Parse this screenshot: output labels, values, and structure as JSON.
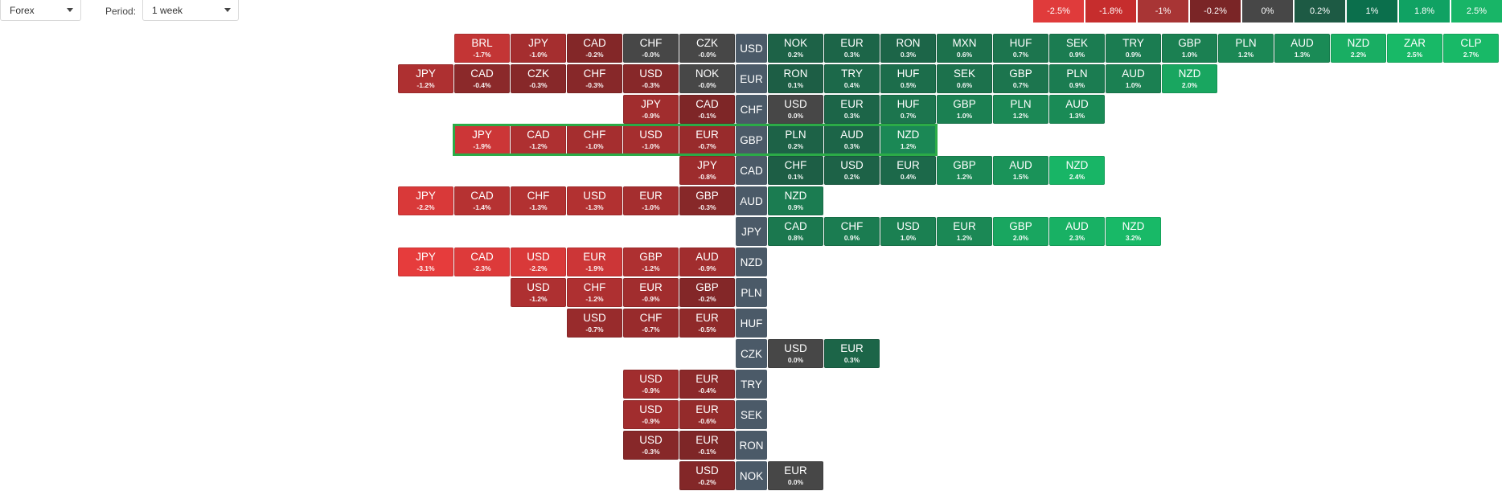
{
  "toolbar": {
    "market_select": "Forex",
    "period_label": "Period:",
    "period_select": "1 week"
  },
  "legend": [
    {
      "label": "-2.5%",
      "color": "#e03b3b"
    },
    {
      "label": "-1.8%",
      "color": "#c62d2d"
    },
    {
      "label": "-1%",
      "color": "#a83535"
    },
    {
      "label": "-0.2%",
      "color": "#7a2526"
    },
    {
      "label": "0%",
      "color": "#474747"
    },
    {
      "label": "0.2%",
      "color": "#1d5a44"
    },
    {
      "label": "1%",
      "color": "#0b6f4c"
    },
    {
      "label": "1.8%",
      "color": "#10a263"
    },
    {
      "label": "2.5%",
      "color": "#18b567"
    }
  ],
  "rows": [
    {
      "base": "USD",
      "neg": [
        [
          "BRL",
          "-1.7%"
        ],
        [
          "JPY",
          "-1.0%"
        ],
        [
          "CAD",
          "-0.2%"
        ],
        [
          "CHF",
          "-0.0%"
        ],
        [
          "CZK",
          "-0.0%"
        ]
      ],
      "pos": [
        [
          "NOK",
          "0.2%"
        ],
        [
          "EUR",
          "0.3%"
        ],
        [
          "RON",
          "0.3%"
        ],
        [
          "MXN",
          "0.6%"
        ],
        [
          "HUF",
          "0.7%"
        ],
        [
          "SEK",
          "0.9%"
        ],
        [
          "TRY",
          "0.9%"
        ],
        [
          "GBP",
          "1.0%"
        ],
        [
          "PLN",
          "1.2%"
        ],
        [
          "AUD",
          "1.3%"
        ],
        [
          "NZD",
          "2.2%"
        ],
        [
          "ZAR",
          "2.5%"
        ],
        [
          "CLP",
          "2.7%"
        ]
      ]
    },
    {
      "base": "EUR",
      "neg": [
        [
          "JPY",
          "-1.2%"
        ],
        [
          "CAD",
          "-0.4%"
        ],
        [
          "CZK",
          "-0.3%"
        ],
        [
          "CHF",
          "-0.3%"
        ],
        [
          "USD",
          "-0.3%"
        ],
        [
          "NOK",
          "-0.0%"
        ]
      ],
      "pos": [
        [
          "RON",
          "0.1%"
        ],
        [
          "TRY",
          "0.4%"
        ],
        [
          "HUF",
          "0.5%"
        ],
        [
          "SEK",
          "0.6%"
        ],
        [
          "GBP",
          "0.7%"
        ],
        [
          "PLN",
          "0.9%"
        ],
        [
          "AUD",
          "1.0%"
        ],
        [
          "NZD",
          "2.0%"
        ]
      ]
    },
    {
      "base": "CHF",
      "neg": [
        [
          "JPY",
          "-0.9%"
        ],
        [
          "CAD",
          "-0.1%"
        ]
      ],
      "pos": [
        [
          "USD",
          "0.0%"
        ],
        [
          "EUR",
          "0.3%"
        ],
        [
          "HUF",
          "0.7%"
        ],
        [
          "GBP",
          "1.0%"
        ],
        [
          "PLN",
          "1.2%"
        ],
        [
          "AUD",
          "1.3%"
        ]
      ]
    },
    {
      "base": "GBP",
      "neg": [
        [
          "JPY",
          "-1.9%"
        ],
        [
          "CAD",
          "-1.2%"
        ],
        [
          "CHF",
          "-1.0%"
        ],
        [
          "USD",
          "-1.0%"
        ],
        [
          "EUR",
          "-0.7%"
        ]
      ],
      "pos": [
        [
          "PLN",
          "0.2%"
        ],
        [
          "AUD",
          "0.3%"
        ],
        [
          "NZD",
          "1.2%"
        ]
      ],
      "highlight": true
    },
    {
      "base": "CAD",
      "neg": [
        [
          "JPY",
          "-0.8%"
        ]
      ],
      "pos": [
        [
          "CHF",
          "0.1%"
        ],
        [
          "USD",
          "0.2%"
        ],
        [
          "EUR",
          "0.4%"
        ],
        [
          "GBP",
          "1.2%"
        ],
        [
          "AUD",
          "1.5%"
        ],
        [
          "NZD",
          "2.4%"
        ]
      ]
    },
    {
      "base": "AUD",
      "neg": [
        [
          "JPY",
          "-2.2%"
        ],
        [
          "CAD",
          "-1.4%"
        ],
        [
          "CHF",
          "-1.3%"
        ],
        [
          "USD",
          "-1.3%"
        ],
        [
          "EUR",
          "-1.0%"
        ],
        [
          "GBP",
          "-0.3%"
        ]
      ],
      "pos": [
        [
          "NZD",
          "0.9%"
        ]
      ]
    },
    {
      "base": "JPY",
      "neg": [],
      "pos": [
        [
          "CAD",
          "0.8%"
        ],
        [
          "CHF",
          "0.9%"
        ],
        [
          "USD",
          "1.0%"
        ],
        [
          "EUR",
          "1.2%"
        ],
        [
          "GBP",
          "2.0%"
        ],
        [
          "AUD",
          "2.3%"
        ],
        [
          "NZD",
          "3.2%"
        ]
      ]
    },
    {
      "base": "NZD",
      "neg": [
        [
          "JPY",
          "-3.1%"
        ],
        [
          "CAD",
          "-2.3%"
        ],
        [
          "USD",
          "-2.2%"
        ],
        [
          "EUR",
          "-1.9%"
        ],
        [
          "GBP",
          "-1.2%"
        ],
        [
          "AUD",
          "-0.9%"
        ]
      ],
      "pos": []
    },
    {
      "base": "PLN",
      "neg": [
        [
          "USD",
          "-1.2%"
        ],
        [
          "CHF",
          "-1.2%"
        ],
        [
          "EUR",
          "-0.9%"
        ],
        [
          "GBP",
          "-0.2%"
        ]
      ],
      "pos": []
    },
    {
      "base": "HUF",
      "neg": [
        [
          "USD",
          "-0.7%"
        ],
        [
          "CHF",
          "-0.7%"
        ],
        [
          "EUR",
          "-0.5%"
        ]
      ],
      "pos": []
    },
    {
      "base": "CZK",
      "neg": [],
      "pos": [
        [
          "USD",
          "0.0%"
        ],
        [
          "EUR",
          "0.3%"
        ]
      ]
    },
    {
      "base": "TRY",
      "neg": [
        [
          "USD",
          "-0.9%"
        ],
        [
          "EUR",
          "-0.4%"
        ]
      ],
      "pos": []
    },
    {
      "base": "SEK",
      "neg": [
        [
          "USD",
          "-0.9%"
        ],
        [
          "EUR",
          "-0.6%"
        ]
      ],
      "pos": []
    },
    {
      "base": "RON",
      "neg": [
        [
          "USD",
          "-0.3%"
        ],
        [
          "EUR",
          "-0.1%"
        ]
      ],
      "pos": []
    },
    {
      "base": "NOK",
      "neg": [
        [
          "USD",
          "-0.2%"
        ]
      ],
      "pos": [
        [
          "EUR",
          "0.0%"
        ]
      ]
    }
  ]
}
